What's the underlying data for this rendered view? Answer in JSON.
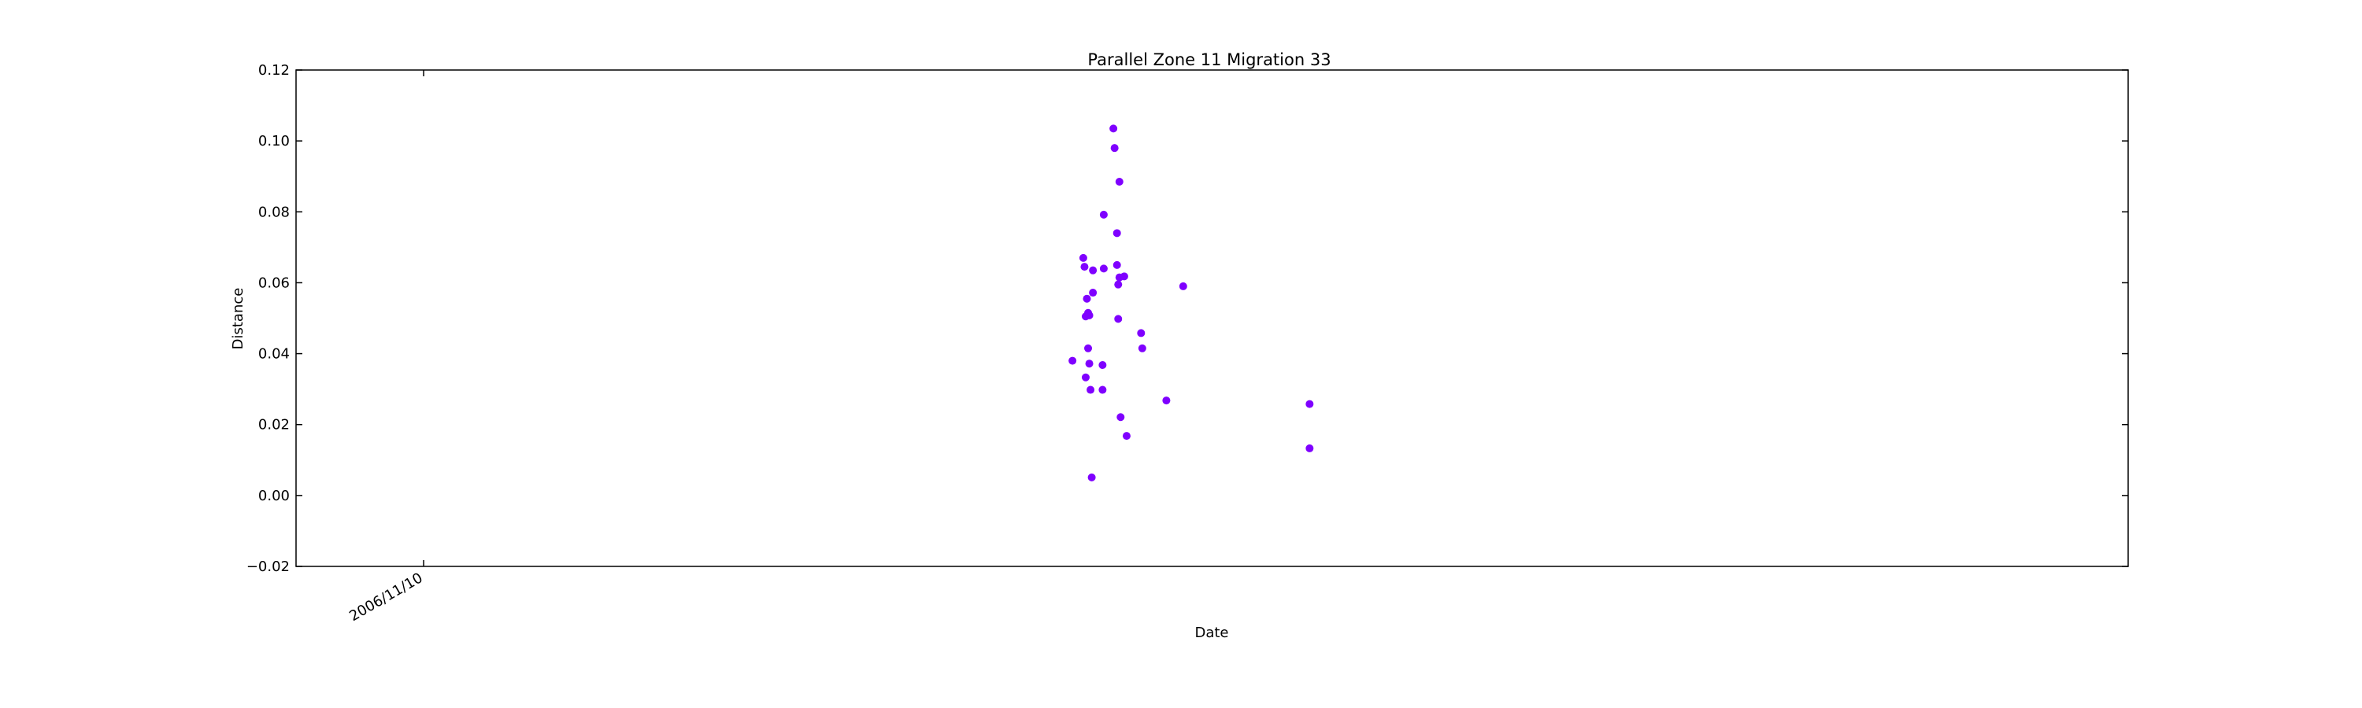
{
  "chart_data": {
    "type": "scatter",
    "title": "Parallel Zone 11 Migration 33",
    "xlabel": "Date",
    "ylabel": "Distance",
    "x_axis_type": "date",
    "xlim": [
      "2006-07-27",
      "2010-09-26"
    ],
    "ylim": [
      -0.02,
      0.12
    ],
    "y_ticks": [
      -0.02,
      0.0,
      0.02,
      0.04,
      0.06,
      0.08,
      0.1,
      0.12
    ],
    "y_tick_labels": [
      "−0.02",
      "0.00",
      "0.02",
      "0.04",
      "0.06",
      "0.08",
      "0.10",
      "0.12"
    ],
    "x_ticks": [
      "2006-11-10"
    ],
    "x_tick_labels": [
      "2006/11/10"
    ],
    "grid": false,
    "marker_color": "#7f00ff",
    "series": [
      {
        "points": [
          {
            "x": "2008-05-02",
            "y": 0.038
          },
          {
            "x": "2008-05-11",
            "y": 0.067
          },
          {
            "x": "2008-05-12",
            "y": 0.0645
          },
          {
            "x": "2008-05-13",
            "y": 0.0505
          },
          {
            "x": "2008-05-13",
            "y": 0.0333
          },
          {
            "x": "2008-05-14",
            "y": 0.0555
          },
          {
            "x": "2008-05-15",
            "y": 0.0515
          },
          {
            "x": "2008-05-15",
            "y": 0.0415
          },
          {
            "x": "2008-05-16",
            "y": 0.0372
          },
          {
            "x": "2008-05-16",
            "y": 0.0508
          },
          {
            "x": "2008-05-17",
            "y": 0.0298
          },
          {
            "x": "2008-05-18",
            "y": 0.0051
          },
          {
            "x": "2008-05-19",
            "y": 0.0635
          },
          {
            "x": "2008-05-19",
            "y": 0.0572
          },
          {
            "x": "2008-05-27",
            "y": 0.0368
          },
          {
            "x": "2008-05-27",
            "y": 0.0298
          },
          {
            "x": "2008-05-28",
            "y": 0.0792
          },
          {
            "x": "2008-05-28",
            "y": 0.064
          },
          {
            "x": "2008-06-05",
            "y": 0.1035
          },
          {
            "x": "2008-06-06",
            "y": 0.098
          },
          {
            "x": "2008-06-08",
            "y": 0.074
          },
          {
            "x": "2008-06-08",
            "y": 0.065
          },
          {
            "x": "2008-06-09",
            "y": 0.0595
          },
          {
            "x": "2008-06-09",
            "y": 0.0498
          },
          {
            "x": "2008-06-10",
            "y": 0.0885
          },
          {
            "x": "2008-06-10",
            "y": 0.0615
          },
          {
            "x": "2008-06-11",
            "y": 0.0221
          },
          {
            "x": "2008-06-14",
            "y": 0.0618
          },
          {
            "x": "2008-06-16",
            "y": 0.0168
          },
          {
            "x": "2008-06-28",
            "y": 0.0458
          },
          {
            "x": "2008-06-29",
            "y": 0.0415
          },
          {
            "x": "2008-07-19",
            "y": 0.0268
          },
          {
            "x": "2008-08-02",
            "y": 0.059
          },
          {
            "x": "2008-11-15",
            "y": 0.0258
          },
          {
            "x": "2008-11-15",
            "y": 0.0133
          }
        ]
      }
    ]
  }
}
